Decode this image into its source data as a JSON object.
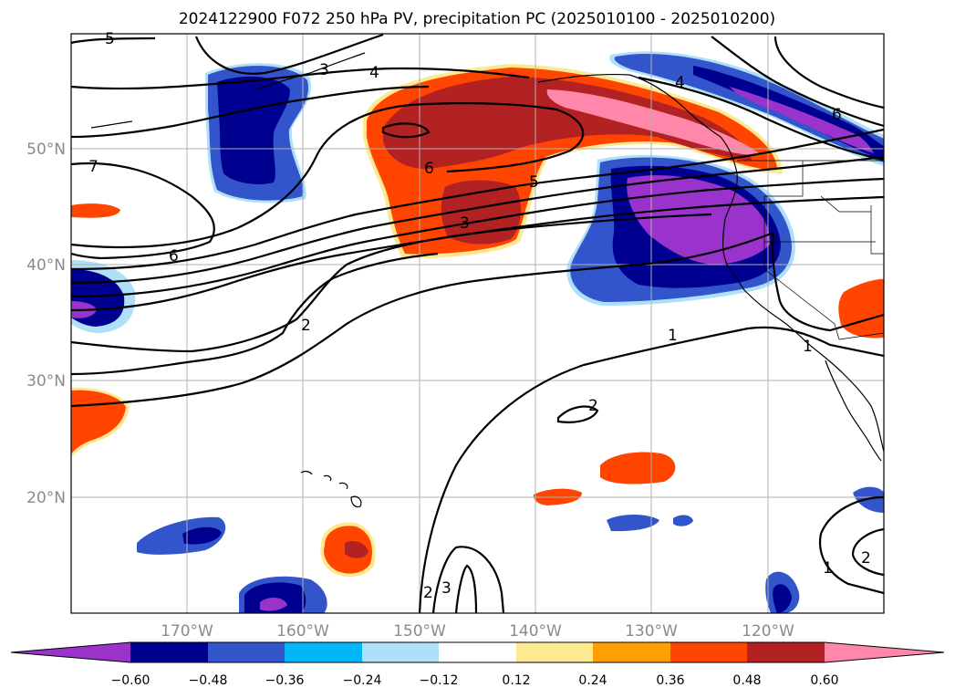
{
  "title": "2024122900 F072 250 hPa PV, precipitation PC (2025010100 - 2025010200)",
  "map": {
    "lat_labels": [
      "50°N",
      "40°N",
      "30°N",
      "20°N"
    ],
    "lon_labels": [
      "170°W",
      "160°W",
      "150°W",
      "140°W",
      "130°W",
      "120°W"
    ],
    "contour_labels": [
      "5",
      "3",
      "4",
      "4",
      "6",
      "7",
      "6",
      "5",
      "3",
      "2",
      "1",
      "1",
      "2",
      "2",
      "3",
      "1",
      "2"
    ]
  },
  "colorbar": {
    "tick_labels": [
      "−0.60",
      "−0.48",
      "−0.36",
      "−0.24",
      "−0.12",
      "0.12",
      "0.24",
      "0.36",
      "0.48",
      "0.60"
    ],
    "colors": {
      "lt_m060": "#9933cc",
      "m060_m048": "#000090",
      "m048_m036": "#3355cc",
      "m036_m024": "#00b8f8",
      "m024_m012": "#b0e0f8",
      "m012_012": "#ffffff",
      "p012_024": "#fde992",
      "p024_036": "#ffa000",
      "p036_048": "#ff4500",
      "p048_060": "#b22222",
      "gt_060": "#ff88aa"
    }
  }
}
